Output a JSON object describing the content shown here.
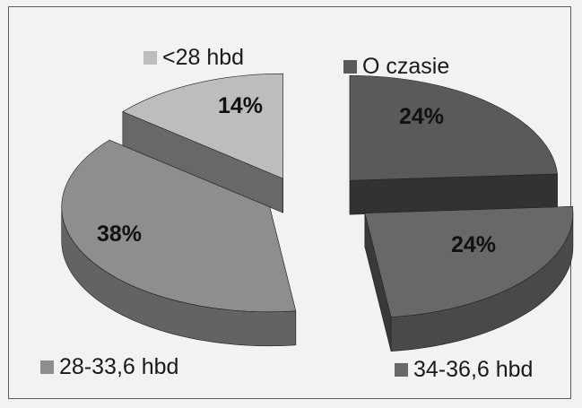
{
  "chart_data": {
    "type": "pie",
    "variant": "3d-exploded",
    "title": "",
    "slices": [
      {
        "label": "<28 hbd",
        "value": 14,
        "display": "14%",
        "color": "#bdbdbd"
      },
      {
        "label": "O czasie",
        "value": 24,
        "display": "24%",
        "color": "#5a5a5a"
      },
      {
        "label": "34-36,6 hbd",
        "value": 24,
        "display": "24%",
        "color": "#686868"
      },
      {
        "label": "28-33,6 hbd",
        "value": 38,
        "display": "38%",
        "color": "#8e8e8e"
      }
    ],
    "legend": {
      "placement": "around-chart"
    }
  }
}
